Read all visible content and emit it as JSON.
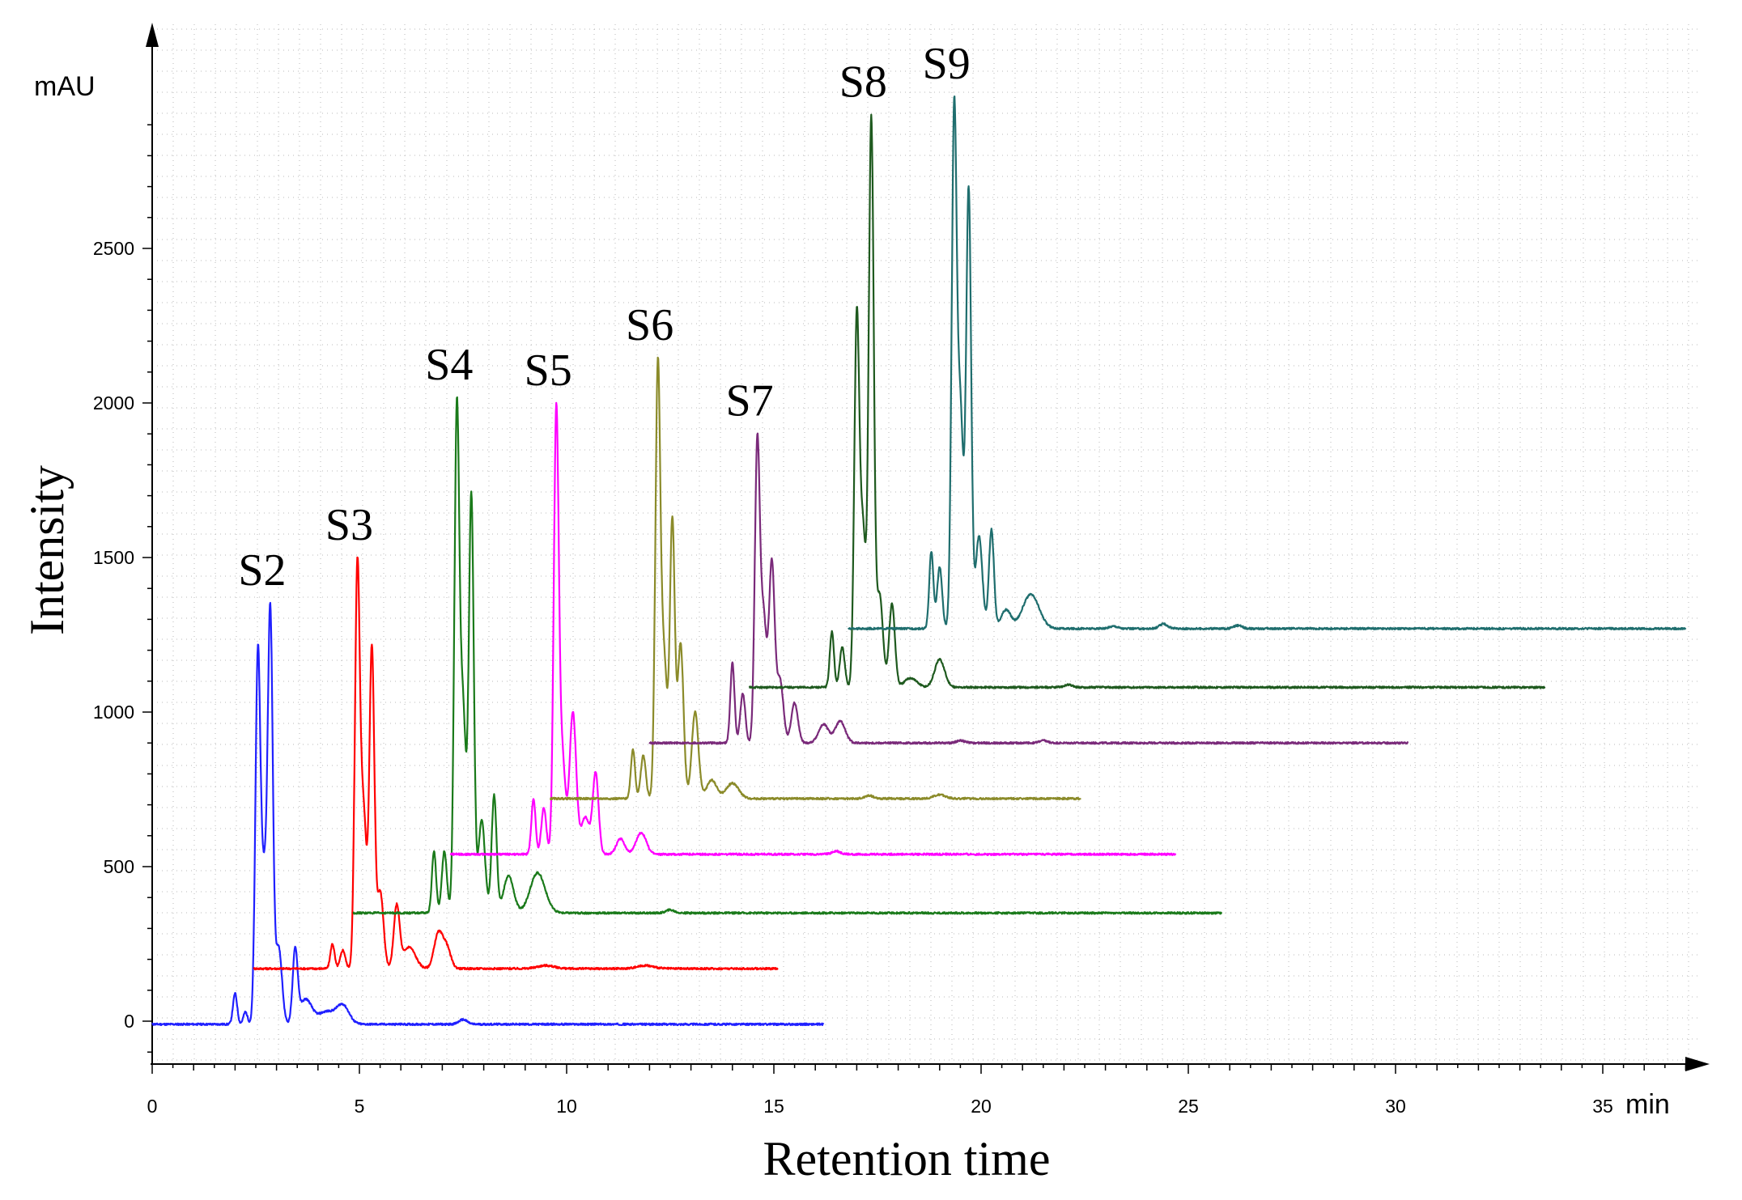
{
  "chart_data": {
    "type": "line",
    "title": "",
    "xlabel": "Retention time",
    "ylabel": "Intensity",
    "x_unit": "min",
    "y_unit": "mAU",
    "xlim": [
      0,
      37
    ],
    "ylim": [
      -150,
      3100
    ],
    "x_ticks": [
      0,
      5,
      10,
      15,
      20,
      25,
      30,
      35
    ],
    "y_ticks": [
      0,
      500,
      1000,
      1500,
      2000,
      2500
    ],
    "grid": true,
    "legend": "none",
    "series": [
      {
        "name": "S2",
        "color": "#2020ff",
        "x_start": 0.0,
        "x_end": 16.2,
        "baseline": -10,
        "peaks": [
          {
            "x": 2.0,
            "h": 100,
            "w": 0.05
          },
          {
            "x": 2.25,
            "h": 40,
            "w": 0.05
          },
          {
            "x": 2.55,
            "h": 1180,
            "w": 0.06
          },
          {
            "x": 2.7,
            "h": 450,
            "w": 0.07
          },
          {
            "x": 2.85,
            "h": 1310,
            "w": 0.06
          },
          {
            "x": 3.05,
            "h": 250,
            "w": 0.08
          },
          {
            "x": 3.45,
            "h": 230,
            "w": 0.06
          },
          {
            "x": 3.7,
            "h": 80,
            "w": 0.15
          },
          {
            "x": 4.2,
            "h": 40,
            "w": 0.2
          },
          {
            "x": 4.6,
            "h": 60,
            "w": 0.15
          },
          {
            "x": 7.5,
            "h": 15,
            "w": 0.1
          }
        ]
      },
      {
        "name": "S3",
        "color": "#ff0000",
        "x_start": 2.45,
        "x_end": 15.1,
        "baseline": 170,
        "peaks": [
          {
            "x": 4.35,
            "h": 80,
            "w": 0.05
          },
          {
            "x": 4.6,
            "h": 60,
            "w": 0.06
          },
          {
            "x": 4.95,
            "h": 1280,
            "w": 0.06
          },
          {
            "x": 5.1,
            "h": 500,
            "w": 0.07
          },
          {
            "x": 5.3,
            "h": 1030,
            "w": 0.06
          },
          {
            "x": 5.5,
            "h": 250,
            "w": 0.08
          },
          {
            "x": 5.9,
            "h": 200,
            "w": 0.07
          },
          {
            "x": 6.2,
            "h": 70,
            "w": 0.15
          },
          {
            "x": 6.9,
            "h": 110,
            "w": 0.1
          },
          {
            "x": 7.1,
            "h": 70,
            "w": 0.1
          },
          {
            "x": 9.5,
            "h": 10,
            "w": 0.2
          },
          {
            "x": 11.9,
            "h": 10,
            "w": 0.2
          }
        ]
      },
      {
        "name": "S4",
        "color": "#1a7a1a",
        "x_start": 4.85,
        "x_end": 25.8,
        "baseline": 350,
        "peaks": [
          {
            "x": 6.8,
            "h": 200,
            "w": 0.05
          },
          {
            "x": 7.05,
            "h": 200,
            "w": 0.06
          },
          {
            "x": 7.35,
            "h": 1600,
            "w": 0.06
          },
          {
            "x": 7.5,
            "h": 650,
            "w": 0.07
          },
          {
            "x": 7.7,
            "h": 1350,
            "w": 0.06
          },
          {
            "x": 7.95,
            "h": 300,
            "w": 0.08
          },
          {
            "x": 8.25,
            "h": 380,
            "w": 0.06
          },
          {
            "x": 8.6,
            "h": 120,
            "w": 0.12
          },
          {
            "x": 9.3,
            "h": 130,
            "w": 0.18
          },
          {
            "x": 12.5,
            "h": 10,
            "w": 0.1
          }
        ]
      },
      {
        "name": "S5",
        "color": "#ff00ff",
        "x_start": 7.2,
        "x_end": 24.7,
        "baseline": 540,
        "peaks": [
          {
            "x": 9.2,
            "h": 180,
            "w": 0.05
          },
          {
            "x": 9.45,
            "h": 150,
            "w": 0.06
          },
          {
            "x": 9.75,
            "h": 1430,
            "w": 0.06
          },
          {
            "x": 9.9,
            "h": 300,
            "w": 0.07
          },
          {
            "x": 10.15,
            "h": 460,
            "w": 0.08
          },
          {
            "x": 10.45,
            "h": 120,
            "w": 0.1
          },
          {
            "x": 10.7,
            "h": 260,
            "w": 0.07
          },
          {
            "x": 11.3,
            "h": 50,
            "w": 0.1
          },
          {
            "x": 11.8,
            "h": 70,
            "w": 0.12
          },
          {
            "x": 16.5,
            "h": 10,
            "w": 0.1
          }
        ]
      },
      {
        "name": "S6",
        "color": "#8b8b2a",
        "x_start": 9.6,
        "x_end": 22.4,
        "baseline": 720,
        "peaks": [
          {
            "x": 11.6,
            "h": 160,
            "w": 0.05
          },
          {
            "x": 11.85,
            "h": 140,
            "w": 0.06
          },
          {
            "x": 12.2,
            "h": 1380,
            "w": 0.06
          },
          {
            "x": 12.35,
            "h": 450,
            "w": 0.07
          },
          {
            "x": 12.55,
            "h": 900,
            "w": 0.06
          },
          {
            "x": 12.75,
            "h": 500,
            "w": 0.07
          },
          {
            "x": 13.1,
            "h": 280,
            "w": 0.08
          },
          {
            "x": 13.5,
            "h": 60,
            "w": 0.12
          },
          {
            "x": 14.0,
            "h": 50,
            "w": 0.15
          },
          {
            "x": 17.3,
            "h": 10,
            "w": 0.1
          },
          {
            "x": 19.0,
            "h": 12,
            "w": 0.15
          }
        ]
      },
      {
        "name": "S7",
        "color": "#7a2a7a",
        "x_start": 12.0,
        "x_end": 30.3,
        "baseline": 900,
        "peaks": [
          {
            "x": 14.0,
            "h": 260,
            "w": 0.05
          },
          {
            "x": 14.25,
            "h": 160,
            "w": 0.06
          },
          {
            "x": 14.6,
            "h": 960,
            "w": 0.06
          },
          {
            "x": 14.75,
            "h": 400,
            "w": 0.07
          },
          {
            "x": 14.95,
            "h": 580,
            "w": 0.07
          },
          {
            "x": 15.15,
            "h": 200,
            "w": 0.08
          },
          {
            "x": 15.5,
            "h": 130,
            "w": 0.08
          },
          {
            "x": 16.2,
            "h": 60,
            "w": 0.12
          },
          {
            "x": 16.6,
            "h": 70,
            "w": 0.12
          },
          {
            "x": 19.5,
            "h": 8,
            "w": 0.1
          },
          {
            "x": 21.5,
            "h": 8,
            "w": 0.1
          }
        ]
      },
      {
        "name": "S8",
        "color": "#1f5a1f",
        "x_start": 14.4,
        "x_end": 33.6,
        "baseline": 1080,
        "peaks": [
          {
            "x": 16.4,
            "h": 180,
            "w": 0.05
          },
          {
            "x": 16.65,
            "h": 130,
            "w": 0.06
          },
          {
            "x": 17.0,
            "h": 1180,
            "w": 0.06
          },
          {
            "x": 17.15,
            "h": 500,
            "w": 0.07
          },
          {
            "x": 17.35,
            "h": 1830,
            "w": 0.06
          },
          {
            "x": 17.55,
            "h": 300,
            "w": 0.08
          },
          {
            "x": 17.85,
            "h": 270,
            "w": 0.07
          },
          {
            "x": 18.3,
            "h": 30,
            "w": 0.15
          },
          {
            "x": 19.0,
            "h": 90,
            "w": 0.12
          },
          {
            "x": 22.1,
            "h": 8,
            "w": 0.1
          }
        ]
      },
      {
        "name": "S9",
        "color": "#1f6e6e",
        "x_start": 16.8,
        "x_end": 37.0,
        "baseline": 1270,
        "peaks": [
          {
            "x": 18.8,
            "h": 250,
            "w": 0.05
          },
          {
            "x": 19.0,
            "h": 200,
            "w": 0.06
          },
          {
            "x": 19.35,
            "h": 1650,
            "w": 0.06
          },
          {
            "x": 19.5,
            "h": 700,
            "w": 0.07
          },
          {
            "x": 19.7,
            "h": 1420,
            "w": 0.06
          },
          {
            "x": 19.95,
            "h": 300,
            "w": 0.08
          },
          {
            "x": 20.25,
            "h": 320,
            "w": 0.06
          },
          {
            "x": 20.6,
            "h": 60,
            "w": 0.12
          },
          {
            "x": 21.2,
            "h": 110,
            "w": 0.2
          },
          {
            "x": 23.2,
            "h": 8,
            "w": 0.1
          },
          {
            "x": 24.4,
            "h": 15,
            "w": 0.1
          },
          {
            "x": 26.2,
            "h": 10,
            "w": 0.1
          }
        ]
      }
    ]
  }
}
